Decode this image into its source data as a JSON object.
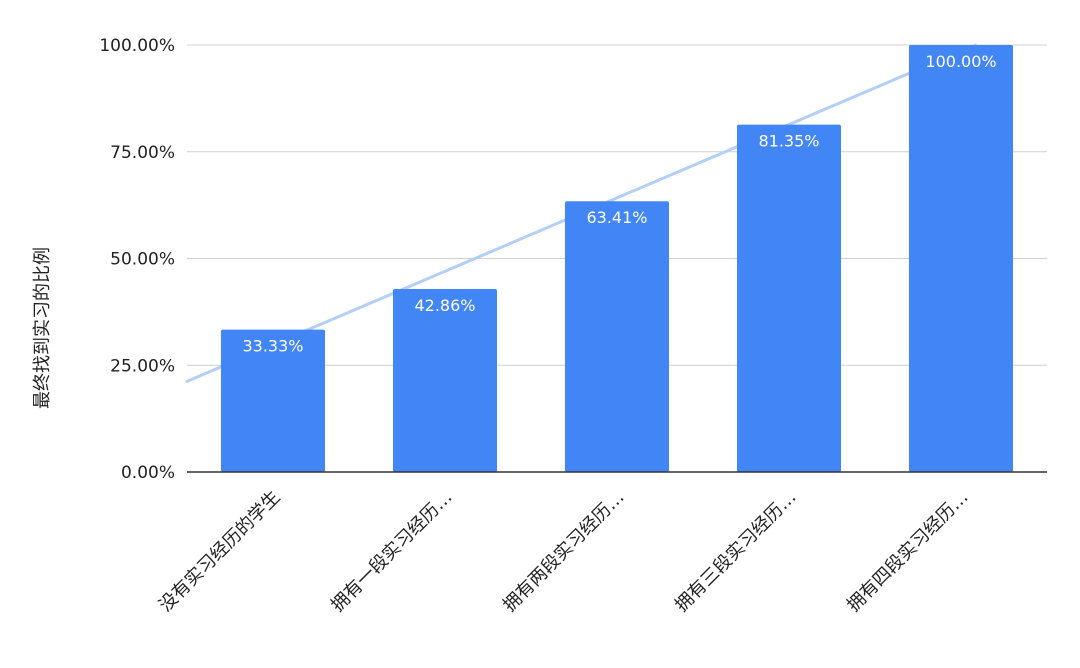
{
  "chart_data": {
    "type": "bar",
    "categories": [
      "没有实习经历的学生",
      "拥有一段实习经历…",
      "拥有两段实习经历…",
      "拥有三段实习经历…",
      "拥有四段实习经历…"
    ],
    "values": [
      33.33,
      42.86,
      63.41,
      81.35,
      100.0
    ],
    "data_labels": [
      "33.33%",
      "42.86%",
      "63.41%",
      "81.35%",
      "100.00%"
    ],
    "title": "",
    "xlabel": "",
    "ylabel": "最终找到实习的比例",
    "ylim": [
      0,
      100
    ],
    "y_ticks": [
      0,
      25,
      50,
      75,
      100
    ],
    "y_tick_labels": [
      "0.00%",
      "25.00%",
      "50.00%",
      "75.00%",
      "100.00%"
    ],
    "trendline": {
      "type": "linear",
      "color": "#b3cff7"
    },
    "grid": true,
    "legend": "none",
    "bar_color": "#4285f4",
    "gridline_color": "#d0d0d0",
    "axis_color": "#333333"
  }
}
